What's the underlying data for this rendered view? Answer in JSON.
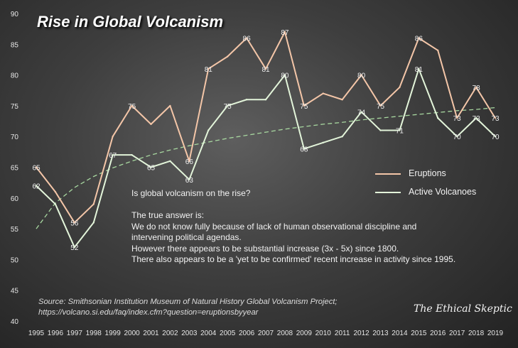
{
  "chart_data": {
    "type": "line",
    "title": "Rise in Global Volcanism",
    "x": [
      "1995",
      "1996",
      "1997",
      "1998",
      "1999",
      "2000",
      "2001",
      "2002",
      "2003",
      "2004",
      "2005",
      "2006",
      "2007",
      "2008",
      "2009",
      "2010",
      "2011",
      "2012",
      "2013",
      "2014",
      "2015",
      "2016",
      "2017",
      "2018",
      "2019"
    ],
    "ylim": [
      40,
      90
    ],
    "yticks": [
      40,
      45,
      50,
      55,
      60,
      65,
      70,
      75,
      80,
      85,
      90
    ],
    "grid": false,
    "legend_position": "right",
    "series": [
      {
        "name": "Eruptions",
        "color": "#f4c6a8",
        "values": [
          65,
          61,
          56,
          59,
          70,
          75,
          72,
          75,
          66,
          81,
          83,
          86,
          81,
          87,
          75,
          77,
          76,
          80,
          75,
          78,
          86,
          84,
          73,
          78,
          73
        ],
        "labeled_indices": [
          0,
          2,
          5,
          8,
          9,
          11,
          12,
          13,
          14,
          17,
          18,
          20,
          22,
          23,
          24
        ]
      },
      {
        "name": "Active Volcanoes",
        "color": "#e3f5da",
        "values": [
          62,
          59,
          52,
          56,
          67,
          67,
          65,
          66,
          63,
          71,
          75,
          76,
          76,
          80,
          68,
          69,
          70,
          74,
          71,
          71,
          81,
          73,
          70,
          73,
          70
        ],
        "labeled_indices": [
          0,
          2,
          4,
          6,
          8,
          10,
          13,
          14,
          17,
          19,
          20,
          22,
          23,
          24
        ]
      }
    ],
    "trendline": {
      "style": "dashed",
      "color": "#a8d8a0",
      "values": [
        55,
        59.2,
        61.7,
        63.5,
        64.9,
        66.0,
        67.0,
        67.8,
        68.5,
        69.1,
        69.7,
        70.2,
        70.7,
        71.2,
        71.6,
        72.0,
        72.3,
        72.7,
        73.0,
        73.3,
        73.6,
        73.9,
        74.2,
        74.4,
        74.7
      ]
    }
  },
  "legend": {
    "eruptions": "Eruptions",
    "active": "Active Volcanoes"
  },
  "note": {
    "question": "Is global volcanism on the rise?",
    "answer_intro": "The true answer is:",
    "line1": "We do not know fully because of lack of human observational discipline and",
    "line2": "intervening political agendas.",
    "line3": "However there appears to be substantial increase (3x - 5x) since 1800.",
    "line4": "There also appears to be a 'yet to be confirmed' recent increase in activity since 1995."
  },
  "source": {
    "line1": "Source:  Smithsonian Institution Museum of Natural History Global Volcanism Project;",
    "line2": "https://volcano.si.edu/faq/index.cfm?question=eruptionsbyyear"
  },
  "brand": "The Ethical Skeptic"
}
